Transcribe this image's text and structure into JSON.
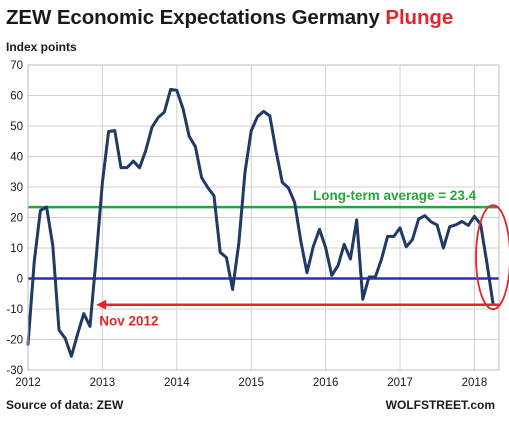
{
  "header": {
    "title_main": "ZEW Economic Expectations Germany",
    "title_highlight": "Plunge",
    "y_axis_label": "Index points"
  },
  "footer": {
    "source": "Source of data: ZEW",
    "brand": "WOLFSTREET.com"
  },
  "colors": {
    "series": "#1f3a64",
    "average_line": "#22a83a",
    "zero_line": "#2a2fb8",
    "nov2012_line": "#e3262b",
    "highlight": "#e3262b"
  },
  "chart_data": {
    "type": "line",
    "title": "ZEW Economic Expectations Germany Plunge",
    "ylabel": "Index points",
    "xlabel": "",
    "ylim": [
      -30,
      70
    ],
    "xlim": [
      2012.0,
      2018.33
    ],
    "grid": true,
    "y_ticks": [
      70,
      60,
      50,
      40,
      30,
      20,
      10,
      0,
      -10,
      -20,
      -30
    ],
    "x_ticks": [
      {
        "label": "2012",
        "value": 2012
      },
      {
        "label": "2013",
        "value": 2013
      },
      {
        "label": "2014",
        "value": 2014
      },
      {
        "label": "2015",
        "value": 2015
      },
      {
        "label": "2016",
        "value": 2016
      },
      {
        "label": "2017",
        "value": 2017
      },
      {
        "label": "2018",
        "value": 2018
      }
    ],
    "series": [
      {
        "x": [
          2012.0,
          2012.083,
          2012.167,
          2012.25,
          2012.333,
          2012.417,
          2012.5,
          2012.583,
          2012.667,
          2012.75,
          2012.833,
          2012.917,
          2013.0,
          2013.083,
          2013.167,
          2013.25,
          2013.333,
          2013.417,
          2013.5,
          2013.583,
          2013.667,
          2013.75,
          2013.833,
          2013.917,
          2014.0,
          2014.083,
          2014.167,
          2014.25,
          2014.333,
          2014.417,
          2014.5,
          2014.583,
          2014.667,
          2014.75,
          2014.833,
          2014.917,
          2015.0,
          2015.083,
          2015.167,
          2015.25,
          2015.333,
          2015.417,
          2015.5,
          2015.583,
          2015.667,
          2015.75,
          2015.833,
          2015.917,
          2016.0,
          2016.083,
          2016.167,
          2016.25,
          2016.333,
          2016.417,
          2016.5,
          2016.583,
          2016.667,
          2016.75,
          2016.833,
          2016.917,
          2017.0,
          2017.083,
          2017.167,
          2017.25,
          2017.333,
          2017.417,
          2017.5,
          2017.583,
          2017.667,
          2017.75,
          2017.833,
          2017.917,
          2018.0,
          2018.083,
          2018.167,
          2018.25
        ],
        "values": [
          -21.6,
          5.4,
          22.3,
          23.4,
          10.8,
          -16.9,
          -19.6,
          -25.5,
          -18.2,
          -11.5,
          -15.7,
          6.9,
          31.5,
          48.2,
          48.5,
          36.3,
          36.4,
          38.5,
          36.3,
          42.0,
          49.6,
          52.8,
          54.6,
          62.0,
          61.7,
          55.7,
          46.6,
          43.2,
          33.1,
          29.8,
          27.1,
          8.6,
          6.9,
          -3.6,
          11.5,
          34.9,
          48.4,
          53.0,
          54.8,
          53.3,
          41.9,
          31.5,
          29.7,
          25.0,
          12.1,
          1.9,
          10.4,
          16.1,
          10.2,
          1.0,
          4.3,
          11.2,
          6.4,
          19.2,
          -6.8,
          0.5,
          0.5,
          6.2,
          13.8,
          13.8,
          16.6,
          10.4,
          12.8,
          19.5,
          20.6,
          18.6,
          17.5,
          10.0,
          17.0,
          17.6,
          18.7,
          17.4,
          20.4,
          17.8,
          5.1,
          -8.2
        ]
      }
    ],
    "reference_lines": [
      {
        "value": 23.4,
        "label": "Long-term average = 23.4"
      },
      {
        "value": 0
      },
      {
        "value": -8.6,
        "label": "Nov 2012"
      }
    ]
  }
}
